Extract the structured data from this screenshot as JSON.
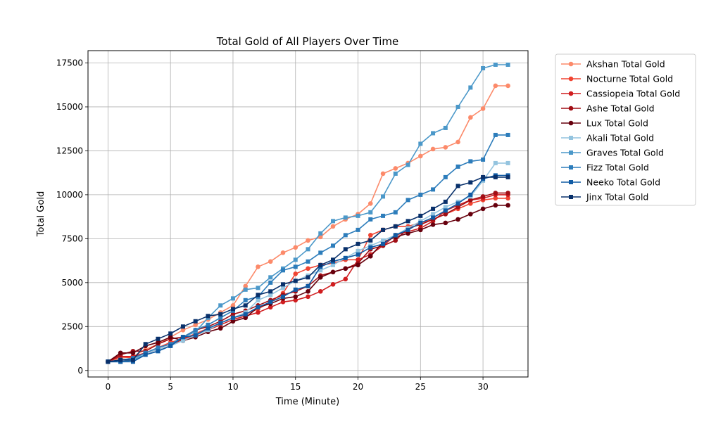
{
  "chart_data": {
    "type": "line",
    "title": "Total Gold of All Players Over Time",
    "xlabel": "Time (Minute)",
    "ylabel": "Total Gold",
    "xlim": [
      -1.6,
      33.6
    ],
    "ylim": [
      -370,
      18200
    ],
    "xticks": [
      0,
      5,
      10,
      15,
      20,
      25,
      30
    ],
    "yticks": [
      0,
      2500,
      5000,
      7500,
      10000,
      12500,
      15000,
      17500
    ],
    "grid": true,
    "legend_position": "outside-right",
    "x": [
      0,
      1,
      2,
      3,
      4,
      5,
      6,
      7,
      8,
      9,
      10,
      11,
      12,
      13,
      14,
      15,
      16,
      17,
      18,
      19,
      20,
      21,
      22,
      23,
      24,
      25,
      26,
      27,
      28,
      29,
      30,
      31,
      32
    ],
    "series": [
      {
        "name": "Akshan Total Gold",
        "color": "#fc8a6a",
        "marker": "circle",
        "values": [
          500,
          700,
          800,
          1200,
          1500,
          1900,
          2300,
          2600,
          2900,
          3300,
          3700,
          4800,
          5900,
          6200,
          6700,
          7000,
          7400,
          7600,
          8200,
          8600,
          8900,
          9500,
          11200,
          11500,
          11800,
          12200,
          12600,
          12700,
          13000,
          14400,
          14900,
          16200,
          16200
        ]
      },
      {
        "name": "Nocturne Total Gold",
        "color": "#f14432",
        "marker": "circle",
        "values": [
          500,
          800,
          700,
          1000,
          1300,
          1600,
          1800,
          2100,
          2400,
          2700,
          3000,
          3200,
          3500,
          3900,
          4400,
          5500,
          5800,
          6000,
          6100,
          6300,
          6300,
          7700,
          8000,
          8200,
          8200,
          8400,
          8600,
          8900,
          9200,
          9500,
          9700,
          9800,
          9800
        ]
      },
      {
        "name": "Cassiopeia Total Gold",
        "color": "#d01d1f",
        "marker": "circle",
        "values": [
          500,
          800,
          800,
          1000,
          1200,
          1400,
          1800,
          2000,
          2300,
          2600,
          2900,
          3100,
          3300,
          3600,
          3900,
          4000,
          4200,
          4500,
          4900,
          5200,
          6300,
          6600,
          7100,
          7700,
          7900,
          8100,
          8500,
          9100,
          9400,
          9700,
          9800,
          10000,
          10000
        ]
      },
      {
        "name": "Ashe Total Gold",
        "color": "#a10e15",
        "marker": "circle",
        "values": [
          500,
          900,
          1100,
          1100,
          1500,
          1800,
          1900,
          2300,
          2500,
          2800,
          3200,
          3400,
          3700,
          4000,
          4300,
          4500,
          4800,
          5400,
          5600,
          5800,
          6100,
          6900,
          7100,
          7400,
          8100,
          8300,
          8600,
          8900,
          9300,
          9700,
          9900,
          10100,
          10100
        ]
      },
      {
        "name": "Lux Total Gold",
        "color": "#67000d",
        "marker": "circle",
        "values": [
          500,
          1000,
          1000,
          1400,
          1600,
          1900,
          1700,
          1900,
          2200,
          2400,
          2800,
          3000,
          3600,
          3800,
          4100,
          4200,
          4500,
          5300,
          5600,
          5800,
          6000,
          6500,
          7300,
          7600,
          7800,
          8000,
          8300,
          8400,
          8600,
          8900,
          9200,
          9400,
          9400
        ]
      },
      {
        "name": "Akali Total Gold",
        "color": "#94c4df",
        "marker": "square",
        "values": [
          500,
          600,
          600,
          1000,
          1200,
          1400,
          1700,
          2000,
          2300,
          2700,
          3000,
          3300,
          4000,
          4300,
          4700,
          5100,
          5400,
          5700,
          6000,
          6400,
          6800,
          7100,
          7400,
          7700,
          8100,
          8500,
          8900,
          9300,
          9600,
          9900,
          10800,
          11800,
          11800
        ]
      },
      {
        "name": "Graves Total Gold",
        "color": "#4b98c9",
        "marker": "square",
        "values": [
          500,
          500,
          600,
          900,
          1100,
          1400,
          1900,
          2200,
          3000,
          3700,
          4100,
          4600,
          4700,
          5300,
          5800,
          6300,
          6900,
          7800,
          8500,
          8700,
          8800,
          9000,
          9900,
          11200,
          11700,
          12900,
          13500,
          13800,
          15000,
          16100,
          17200,
          17400,
          17400
        ]
      },
      {
        "name": "Fizz Total Gold",
        "color": "#2d7dbb",
        "marker": "square",
        "values": [
          500,
          600,
          700,
          1000,
          1300,
          1500,
          1900,
          2300,
          2600,
          3000,
          3400,
          4000,
          4200,
          5000,
          5700,
          5900,
          6200,
          6700,
          7100,
          7700,
          8000,
          8600,
          8800,
          9000,
          9700,
          10000,
          10300,
          11000,
          11600,
          11900,
          12000,
          13400,
          13400
        ]
      },
      {
        "name": "Neeko Total Gold",
        "color": "#105ba4",
        "marker": "square",
        "values": [
          500,
          500,
          500,
          900,
          1100,
          1400,
          1900,
          2000,
          2400,
          2700,
          3000,
          3200,
          3600,
          3900,
          4200,
          4600,
          4800,
          5900,
          6200,
          6400,
          6600,
          7000,
          7200,
          7700,
          8000,
          8400,
          8700,
          9100,
          9500,
          10000,
          10900,
          11100,
          11100
        ]
      },
      {
        "name": "Jinx Total Gold",
        "color": "#08306b",
        "marker": "square",
        "values": [
          500,
          600,
          600,
          1500,
          1800,
          2100,
          2500,
          2800,
          3100,
          3200,
          3500,
          3700,
          4300,
          4500,
          4900,
          5100,
          5300,
          6000,
          6300,
          6900,
          7200,
          7400,
          8000,
          8200,
          8500,
          8800,
          9200,
          9600,
          10500,
          10700,
          11000,
          11000,
          11000
        ]
      }
    ]
  }
}
